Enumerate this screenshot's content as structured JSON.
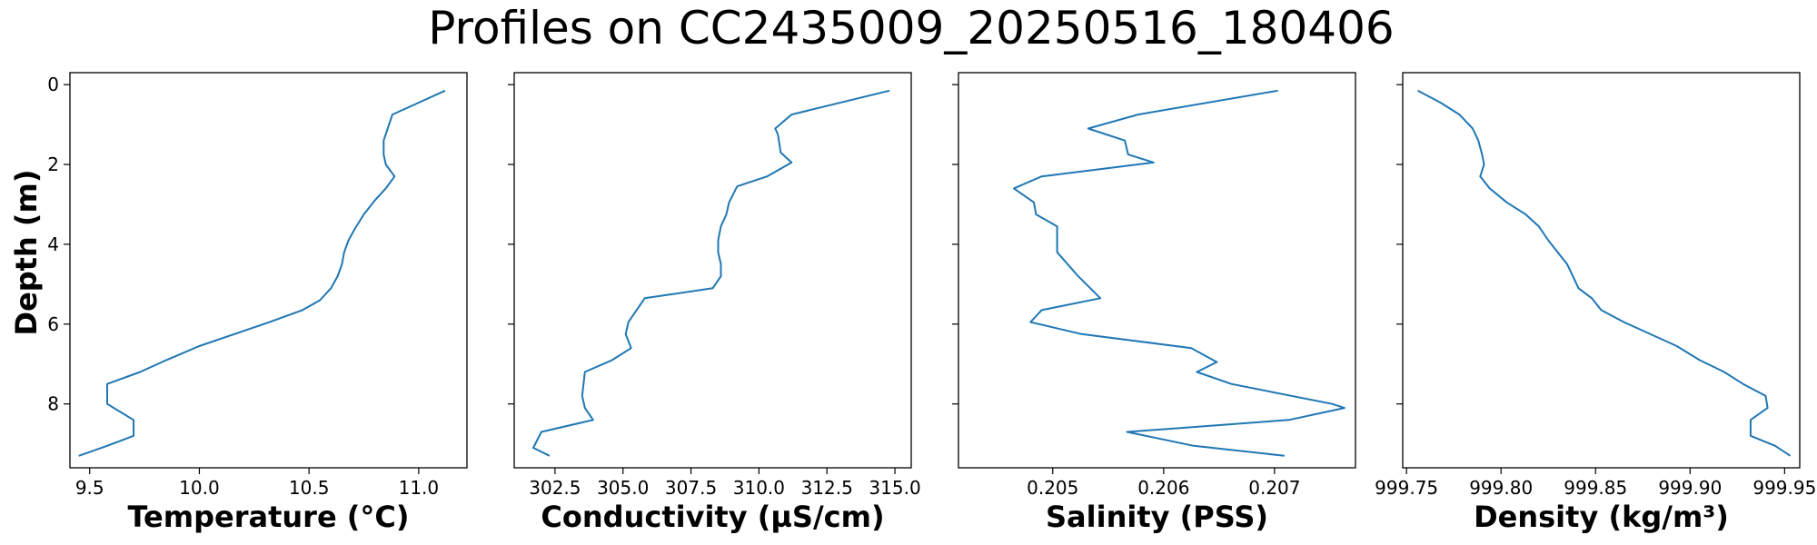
{
  "figure": {
    "title": "Profiles on CC2435009_20250516_180406"
  },
  "shared_y": {
    "label": "Depth (m)",
    "ticks": [
      0,
      2,
      4,
      6,
      8
    ],
    "tick_labels": [
      "0",
      "2",
      "4",
      "6",
      "8"
    ],
    "ylim": [
      9.6,
      -0.3
    ],
    "inverted": true
  },
  "colors": {
    "line": "#1f77b4",
    "axes": "#000000",
    "background": "#ffffff"
  },
  "chart_data": [
    {
      "type": "line",
      "xlabel": "Temperature (°C)",
      "ylabel": "Depth (m)",
      "xlim": [
        9.41,
        11.22
      ],
      "xticks": [
        9.5,
        10.0,
        10.5,
        11.0
      ],
      "xtick_labels": [
        "9.5",
        "10.0",
        "10.5",
        "11.0"
      ],
      "grid": false,
      "series": [
        {
          "x": [
            11.12,
            11.0,
            10.88,
            10.84,
            10.84,
            10.85,
            10.89,
            10.85,
            10.8,
            10.75,
            10.71,
            10.68,
            10.66,
            10.65,
            10.63,
            10.6,
            10.55,
            10.47,
            10.32,
            10.0,
            9.85,
            9.73,
            9.58,
            9.58,
            9.7,
            9.7,
            9.58,
            9.45
          ],
          "y": [
            0.15,
            0.45,
            0.75,
            1.4,
            1.75,
            2.0,
            2.3,
            2.6,
            2.9,
            3.25,
            3.6,
            3.9,
            4.2,
            4.5,
            4.8,
            5.1,
            5.4,
            5.65,
            5.95,
            6.55,
            6.9,
            7.2,
            7.5,
            8.0,
            8.4,
            8.8,
            9.05,
            9.3
          ]
        }
      ]
    },
    {
      "type": "line",
      "xlabel": "Conductivity (µS/cm)",
      "ylabel": "Depth (m)",
      "xlim": [
        301.0,
        315.6
      ],
      "xticks": [
        302.5,
        305.0,
        307.5,
        310.0,
        312.5,
        315.0
      ],
      "xtick_labels": [
        "302.5",
        "305.0",
        "307.5",
        "310.0",
        "312.5",
        "315.0"
      ],
      "grid": false,
      "series": [
        {
          "x": [
            314.8,
            311.2,
            310.6,
            310.7,
            310.8,
            311.2,
            310.3,
            309.2,
            308.9,
            308.8,
            308.6,
            308.5,
            308.5,
            308.6,
            308.6,
            308.3,
            305.8,
            305.2,
            305.1,
            305.3,
            304.6,
            303.6,
            303.5,
            303.6,
            303.9,
            302.0,
            301.7,
            302.3
          ],
          "y": [
            0.15,
            0.75,
            1.1,
            1.25,
            1.7,
            1.95,
            2.3,
            2.55,
            2.95,
            3.25,
            3.55,
            3.9,
            4.2,
            4.5,
            4.8,
            5.1,
            5.35,
            5.95,
            6.25,
            6.6,
            6.9,
            7.2,
            7.8,
            8.1,
            8.4,
            8.7,
            9.1,
            9.3
          ]
        }
      ]
    },
    {
      "type": "line",
      "xlabel": "Salinity (PSS)",
      "ylabel": "Depth (m)",
      "xlim": [
        0.20415,
        0.20773
      ],
      "xticks": [
        0.205,
        0.206,
        0.207
      ],
      "xtick_labels": [
        "0.205",
        "0.206",
        "0.207"
      ],
      "grid": false,
      "series": [
        {
          "x": [
            0.20703,
            0.20577,
            0.20532,
            0.20565,
            0.20568,
            0.20591,
            0.2049,
            0.20465,
            0.20483,
            0.20485,
            0.20504,
            0.20504,
            0.20504,
            0.20523,
            0.20543,
            0.2049,
            0.2048,
            0.20526,
            0.20625,
            0.20648,
            0.2063,
            0.20661,
            0.20752,
            0.20763,
            0.20713,
            0.20567,
            0.20627,
            0.20709
          ],
          "y": [
            0.15,
            0.75,
            1.1,
            1.4,
            1.75,
            1.95,
            2.3,
            2.6,
            2.95,
            3.25,
            3.55,
            3.9,
            4.2,
            4.8,
            5.35,
            5.65,
            5.95,
            6.25,
            6.6,
            6.95,
            7.2,
            7.5,
            8.0,
            8.1,
            8.4,
            8.7,
            9.05,
            9.3
          ]
        }
      ]
    },
    {
      "type": "line",
      "xlabel": "Density (kg/m³)",
      "ylabel": "Depth (m)",
      "xlim": [
        999.748,
        999.958
      ],
      "xticks": [
        999.75,
        999.8,
        999.85,
        999.9,
        999.95
      ],
      "xtick_labels": [
        "999.75",
        "999.80",
        "999.85",
        "999.90",
        "999.95"
      ],
      "grid": false,
      "series": [
        {
          "x": [
            999.756,
            999.768,
            999.778,
            999.785,
            999.788,
            999.79,
            999.791,
            999.789,
            999.794,
            999.803,
            999.813,
            999.82,
            999.825,
            999.83,
            999.835,
            999.838,
            999.841,
            999.848,
            999.853,
            999.865,
            999.893,
            999.905,
            999.918,
            999.928,
            999.94,
            999.941,
            999.932,
            999.932,
            999.945,
            999.953
          ],
          "y": [
            0.15,
            0.45,
            0.75,
            1.1,
            1.4,
            1.75,
            2.0,
            2.3,
            2.6,
            2.95,
            3.25,
            3.55,
            3.9,
            4.2,
            4.5,
            4.8,
            5.1,
            5.35,
            5.65,
            5.95,
            6.55,
            6.9,
            7.2,
            7.5,
            7.8,
            8.1,
            8.4,
            8.8,
            9.05,
            9.3
          ]
        }
      ]
    }
  ]
}
